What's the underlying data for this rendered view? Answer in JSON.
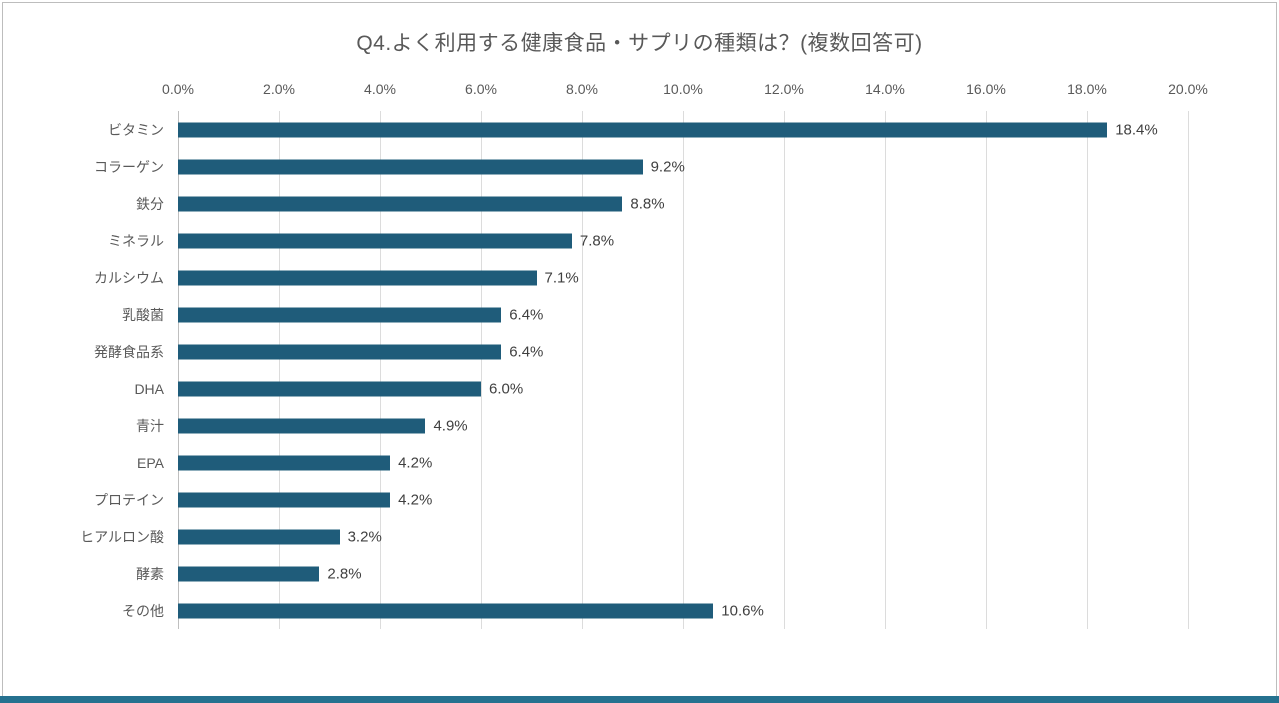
{
  "chart_data": {
    "type": "bar",
    "orientation": "horizontal",
    "title": "Q4.よく利用する健康食品・サプリの種類は？(複数回答可)",
    "categories": [
      "ビタミン",
      "コラーゲン",
      "鉄分",
      "ミネラル",
      "カルシウム",
      "乳酸菌",
      "発酵食品系",
      "DHA",
      "青汁",
      "EPA",
      "プロテイン",
      "ヒアルロン酸",
      "酵素",
      "その他"
    ],
    "values": [
      18.4,
      9.2,
      8.8,
      7.8,
      7.1,
      6.4,
      6.4,
      6.0,
      4.9,
      4.2,
      4.2,
      3.2,
      2.8,
      10.6
    ],
    "value_labels": [
      "18.4%",
      "9.2%",
      "8.8%",
      "7.8%",
      "7.1%",
      "6.4%",
      "6.4%",
      "6.0%",
      "4.9%",
      "4.2%",
      "4.2%",
      "3.2%",
      "2.8%",
      "10.6%"
    ],
    "x_ticks": [
      "0.0%",
      "2.0%",
      "4.0%",
      "6.0%",
      "8.0%",
      "10.0%",
      "12.0%",
      "14.0%",
      "16.0%",
      "18.0%",
      "20.0%"
    ],
    "x_tick_values": [
      0,
      2,
      4,
      6,
      8,
      10,
      12,
      14,
      16,
      18,
      20
    ],
    "xlim": [
      0,
      20
    ],
    "xlabel": "",
    "ylabel": "",
    "grid": true,
    "legend": "none",
    "bar_color": "#1f5c7a",
    "grid_color": "#dcdcdc",
    "label_color": "#595959",
    "value_label_color": "#3f3f3f",
    "accent_strip_color": "#25718f"
  }
}
